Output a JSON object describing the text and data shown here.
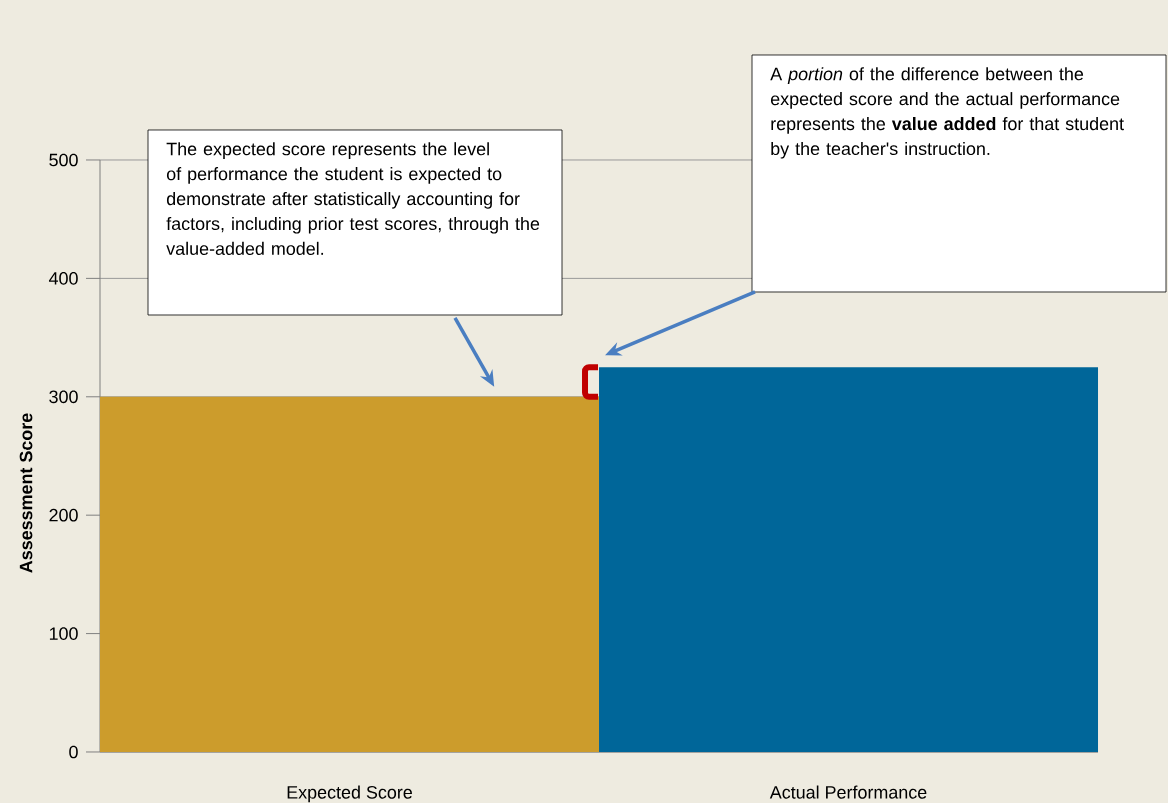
{
  "chart_data": {
    "type": "bar",
    "ylabel": "Assessment Score",
    "categories": [
      "Expected Score",
      "Actual Performance"
    ],
    "values": [
      300,
      325
    ],
    "colors": [
      "#cc9c2c",
      "#006699"
    ],
    "ylim": [
      0,
      500
    ],
    "yticks": [
      0,
      100,
      200,
      300,
      400,
      500
    ],
    "grid": "y",
    "annotations": [
      "The expected score represents the level of performance the student is expected to demonstrate after statistically accounting for factors, including prior test scores, through the value-added model.",
      "A *portion* of the difference between the expected score and the actual performance represents the **value added** for that student by the teacher's instruction."
    ]
  }
}
